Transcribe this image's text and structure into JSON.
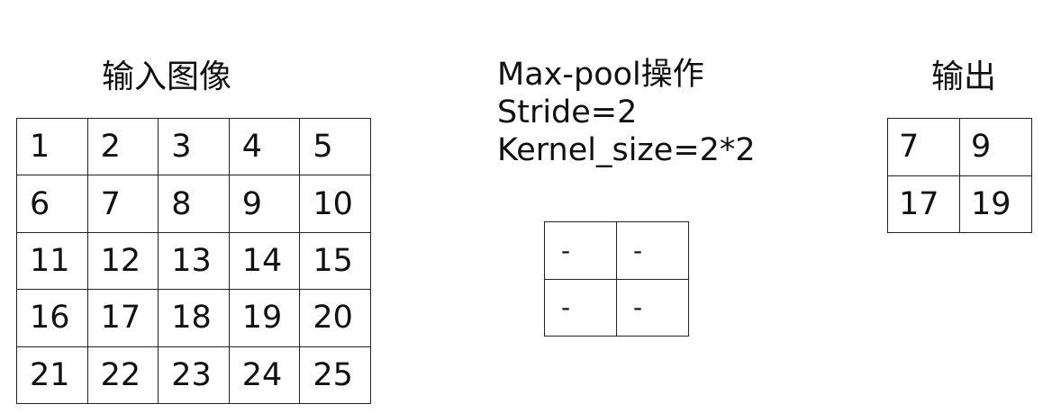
{
  "input": {
    "title": "输入图像",
    "rows": [
      [
        "1",
        "2",
        "3",
        "4",
        "5"
      ],
      [
        "6",
        "7",
        "8",
        "9",
        "10"
      ],
      [
        "11",
        "12",
        "13",
        "14",
        "15"
      ],
      [
        "16",
        "17",
        "18",
        "19",
        "20"
      ],
      [
        "21",
        "22",
        "23",
        "24",
        "25"
      ]
    ]
  },
  "operation": {
    "line1": "Max-pool操作",
    "line2": "Stride=2",
    "line3": "Kernel_size=2*2"
  },
  "kernel": {
    "rows": [
      [
        "-",
        "-"
      ],
      [
        "-",
        "-"
      ]
    ]
  },
  "output": {
    "title": "输出",
    "rows": [
      [
        "7",
        "9"
      ],
      [
        "17",
        "19"
      ]
    ]
  }
}
